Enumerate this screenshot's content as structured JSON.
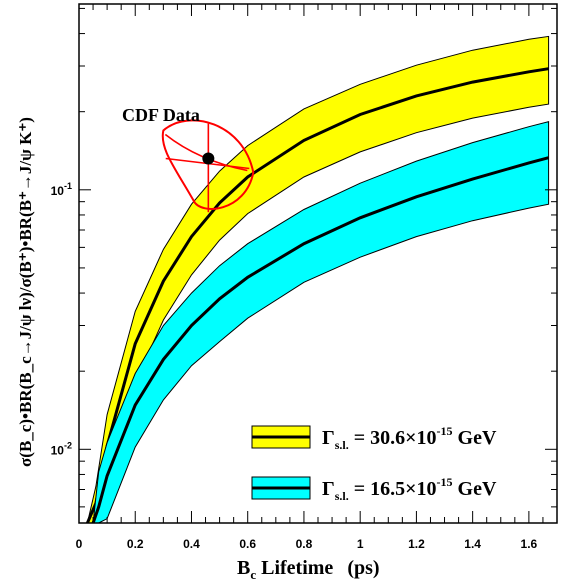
{
  "chart_data": {
    "type": "area",
    "xlabel": "B_c Lifetime (ps)",
    "xlabel_parts": {
      "main": "B",
      "sub": "c",
      "rest": " Lifetime",
      "unit": "(ps)"
    },
    "ylabel": "σ(B_c)•BR(B_c→J/ψ lν)/σ(B⁺)•BR(B⁺→J/ψ K⁺)",
    "xlim": [
      0,
      1.7
    ],
    "ylim": [
      0.0052,
      0.52
    ],
    "yscale": "log",
    "x_ticks": [
      0,
      0.2,
      0.4,
      0.6,
      0.8,
      1,
      1.2,
      1.4,
      1.6
    ],
    "x_tick_labels": [
      "0",
      "0.2",
      "0.4",
      "0.6",
      "0.8",
      "1",
      "1.2",
      "1.4",
      "1.6"
    ],
    "y_ticks": [
      0.01,
      0.1
    ],
    "y_tick_labels": [
      {
        "base": "10",
        "exp": "-2"
      },
      {
        "base": "10",
        "exp": "-1"
      }
    ],
    "bands": [
      {
        "name_parts": {
          "symbol": "Γ",
          "sub": "s.l.",
          "mid": " = 30.6×10",
          "sup": "-15",
          "unit": " GeV"
        },
        "fill": "#ffff00",
        "line_color": "#000000",
        "x": [
          0.03,
          0.06,
          0.1,
          0.2,
          0.3,
          0.4,
          0.5,
          0.6,
          0.8,
          1.0,
          1.2,
          1.4,
          1.6,
          1.67
        ],
        "central": [
          0.0052,
          0.0062,
          0.0103,
          0.0255,
          0.0445,
          0.066,
          0.089,
          0.112,
          0.155,
          0.195,
          0.23,
          0.26,
          0.285,
          0.293
        ],
        "upper": [
          0.0052,
          0.0072,
          0.0136,
          0.034,
          0.059,
          0.088,
          0.118,
          0.148,
          0.205,
          0.255,
          0.302,
          0.345,
          0.38,
          0.39
        ],
        "lower": [
          0.0052,
          0.0052,
          0.0074,
          0.0181,
          0.0315,
          0.047,
          0.064,
          0.081,
          0.112,
          0.14,
          0.166,
          0.189,
          0.208,
          0.214
        ]
      },
      {
        "name_parts": {
          "symbol": "Γ",
          "sub": "s.l.",
          "mid": " = 16.5×10",
          "sup": "-15",
          "unit": " GeV"
        },
        "fill": "#00ffff",
        "line_color": "#000000",
        "x": [
          0.05,
          0.07,
          0.1,
          0.2,
          0.3,
          0.4,
          0.5,
          0.6,
          0.8,
          1.0,
          1.2,
          1.4,
          1.6,
          1.67
        ],
        "central": [
          0.0052,
          0.006,
          0.0079,
          0.0148,
          0.0222,
          0.03,
          0.038,
          0.046,
          0.062,
          0.078,
          0.094,
          0.11,
          0.127,
          0.133
        ],
        "upper": [
          0.0052,
          0.0082,
          0.0106,
          0.0196,
          0.03,
          0.04,
          0.051,
          0.062,
          0.084,
          0.106,
          0.129,
          0.152,
          0.175,
          0.183
        ],
        "lower": [
          0.0052,
          0.0052,
          0.0054,
          0.0102,
          0.0155,
          0.021,
          0.026,
          0.032,
          0.044,
          0.055,
          0.066,
          0.076,
          0.085,
          0.088
        ]
      }
    ],
    "data_points": [
      {
        "label": "CDF Data",
        "x": 0.46,
        "y": 0.132,
        "x_err": [
          0.28,
          0.62
        ],
        "y_err": [
          0.082,
          0.18
        ],
        "color": "#ff0000",
        "ellipse_extent_x": [
          0.3,
          0.62
        ],
        "ellipse_extent_y": [
          0.082,
          0.185
        ]
      }
    ]
  }
}
